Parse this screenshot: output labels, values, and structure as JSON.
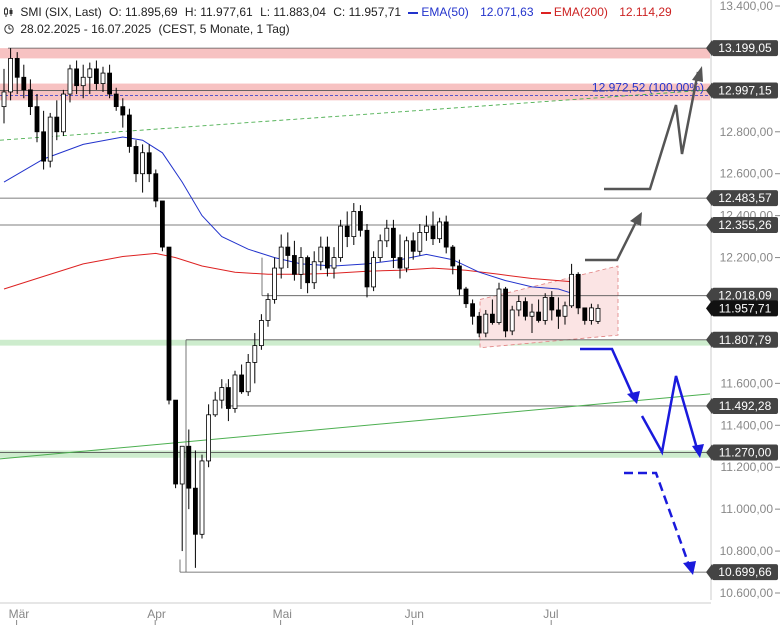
{
  "header": {
    "symbol": "SMI (SIX, Last)",
    "open": "O: 11.895,69",
    "high": "H: 11.977,61",
    "low": "L: 11.883,04",
    "close": "C: 11.957,71",
    "ema50_label": "EMA(50)",
    "ema50_value": "12.071,63",
    "ema200_label": "EMA(200)",
    "ema200_value": "12.114,29",
    "range": "28.02.2025 - 16.07.2025",
    "settings": "(CEST, 5 Monate, 1 Tag)"
  },
  "colors": {
    "up": "#ffffff",
    "down": "#000000",
    "ema50": "#2233cc",
    "ema200": "#dd2222",
    "resistance_zone": "#f7c2c2",
    "support_zone": "#cdeccd",
    "arrow_up": "#555555",
    "arrow_down": "#1a1adc"
  },
  "chart_data": {
    "type": "candlestick",
    "ylim": [
      10600,
      13400
    ],
    "y_ticks": [
      {
        "v": 13400,
        "label": "13.400,00"
      },
      {
        "v": 12800,
        "label": "12.800,00"
      },
      {
        "v": 12600,
        "label": "12.600,00"
      },
      {
        "v": 12400,
        "label": "12.400,00"
      },
      {
        "v": 12200,
        "label": "12.200,00"
      },
      {
        "v": 11600,
        "label": "11.600,00"
      },
      {
        "v": 11400,
        "label": "11.400,00"
      },
      {
        "v": 11200,
        "label": "11.200,00"
      },
      {
        "v": 11000,
        "label": "11.000,00"
      },
      {
        "v": 10800,
        "label": "10.800,00"
      },
      {
        "v": 10600,
        "label": "10.600,00"
      }
    ],
    "x_labels": [
      {
        "label": "Mär",
        "bar": 1
      },
      {
        "label": "Apr",
        "bar": 22
      },
      {
        "label": "Mai",
        "bar": 41
      },
      {
        "label": "Jun",
        "bar": 61
      },
      {
        "label": "Jul",
        "bar": 82
      }
    ],
    "levels": [
      {
        "v": 13199.05,
        "label": "13.199,05",
        "badge": "dark"
      },
      {
        "v": 12997.15,
        "label": "12.997,15",
        "badge": "dark"
      },
      {
        "v": 12483.57,
        "label": "12.483,57",
        "badge": "dark"
      },
      {
        "v": 12355.26,
        "label": "12.355,26",
        "badge": "dark"
      },
      {
        "v": 12018.09,
        "label": "12.018,09",
        "badge": "dark"
      },
      {
        "v": 11957.71,
        "label": "11.957,71",
        "badge": "last"
      },
      {
        "v": 11807.79,
        "label": "11.807,79",
        "badge": "dark"
      },
      {
        "v": 11492.28,
        "label": "11.492,28",
        "badge": "dark"
      },
      {
        "v": 11270.0,
        "label": "11.270,00",
        "badge": "dark"
      },
      {
        "v": 10699.66,
        "label": "10.699,66",
        "badge": "dark"
      }
    ],
    "fib_label": "12.972,52 (100,00%)",
    "fib_value": 12972.52,
    "candles": [
      [
        12920,
        13100,
        12840,
        12990
      ],
      [
        12990,
        13199,
        12950,
        13150
      ],
      [
        13150,
        13180,
        12980,
        13060
      ],
      [
        13060,
        13120,
        12960,
        13000
      ],
      [
        13000,
        13050,
        12880,
        12920
      ],
      [
        12920,
        12980,
        12750,
        12800
      ],
      [
        12800,
        12900,
        12620,
        12660
      ],
      [
        12660,
        12890,
        12630,
        12870
      ],
      [
        12870,
        12950,
        12760,
        12800
      ],
      [
        12800,
        13000,
        12780,
        12980
      ],
      [
        12980,
        13120,
        12940,
        13100
      ],
      [
        13100,
        13140,
        12980,
        13020
      ],
      [
        13020,
        13120,
        12960,
        13060
      ],
      [
        13060,
        13130,
        12980,
        13100
      ],
      [
        13100,
        13140,
        13000,
        13030
      ],
      [
        13030,
        13110,
        12990,
        13080
      ],
      [
        13080,
        13120,
        12960,
        12980
      ],
      [
        12980,
        13010,
        12900,
        12920
      ],
      [
        12920,
        12960,
        12820,
        12880
      ],
      [
        12880,
        12910,
        12700,
        12730
      ],
      [
        12730,
        12760,
        12560,
        12600
      ],
      [
        12600,
        12740,
        12510,
        12700
      ],
      [
        12700,
        12740,
        12560,
        12600
      ],
      [
        12600,
        12620,
        12440,
        12470
      ],
      [
        12470,
        12460,
        12230,
        12250
      ],
      [
        12250,
        12250,
        11500,
        11520
      ],
      [
        11520,
        11520,
        11100,
        11120
      ],
      [
        11120,
        11300,
        10800,
        11300
      ],
      [
        11300,
        11380,
        11000,
        11100
      ],
      [
        11100,
        11280,
        10720,
        10880
      ],
      [
        10880,
        11260,
        10860,
        11230
      ],
      [
        11230,
        11500,
        11200,
        11450
      ],
      [
        11450,
        11560,
        11440,
        11520
      ],
      [
        11520,
        11620,
        11480,
        11580
      ],
      [
        11580,
        11620,
        11420,
        11480
      ],
      [
        11480,
        11660,
        11460,
        11640
      ],
      [
        11640,
        11690,
        11550,
        11560
      ],
      [
        11560,
        11740,
        11540,
        11700
      ],
      [
        11700,
        11840,
        11600,
        11780
      ],
      [
        11780,
        11930,
        11760,
        11900
      ],
      [
        11900,
        12030,
        11870,
        12000
      ],
      [
        12000,
        12200,
        11980,
        12150
      ],
      [
        12150,
        12310,
        12100,
        12250
      ],
      [
        12250,
        12320,
        12150,
        12210
      ],
      [
        12210,
        12280,
        12090,
        12120
      ],
      [
        12120,
        12250,
        12050,
        12200
      ],
      [
        12200,
        12210,
        12030,
        12080
      ],
      [
        12080,
        12230,
        12050,
        12180
      ],
      [
        12180,
        12300,
        12140,
        12250
      ],
      [
        12250,
        12300,
        12110,
        12150
      ],
      [
        12150,
        12250,
        12100,
        12200
      ],
      [
        12200,
        12380,
        12180,
        12350
      ],
      [
        12350,
        12420,
        12250,
        12300
      ],
      [
        12300,
        12460,
        12260,
        12420
      ],
      [
        12420,
        12450,
        12300,
        12330
      ],
      [
        12330,
        12360,
        12010,
        12060
      ],
      [
        12060,
        12230,
        12040,
        12200
      ],
      [
        12200,
        12310,
        12180,
        12280
      ],
      [
        12280,
        12380,
        12250,
        12340
      ],
      [
        12340,
        12380,
        12150,
        12200
      ],
      [
        12200,
        12310,
        12100,
        12150
      ],
      [
        12150,
        12300,
        12130,
        12280
      ],
      [
        12280,
        12320,
        12190,
        12230
      ],
      [
        12230,
        12360,
        12210,
        12320
      ],
      [
        12320,
        12400,
        12280,
        12350
      ],
      [
        12350,
        12420,
        12260,
        12290
      ],
      [
        12290,
        12390,
        12270,
        12370
      ],
      [
        12370,
        12400,
        12220,
        12250
      ],
      [
        12250,
        12260,
        12120,
        12160
      ],
      [
        12160,
        12190,
        12020,
        12050
      ],
      [
        12050,
        12060,
        11960,
        11980
      ],
      [
        11980,
        12000,
        11880,
        11920
      ],
      [
        11920,
        11940,
        11820,
        11840
      ],
      [
        11840,
        11950,
        11820,
        11930
      ],
      [
        11930,
        12000,
        11880,
        11890
      ],
      [
        11890,
        12080,
        11880,
        12050
      ],
      [
        12050,
        12060,
        11820,
        11850
      ],
      [
        11850,
        11970,
        11830,
        11950
      ],
      [
        11950,
        12020,
        11920,
        11990
      ],
      [
        11990,
        12010,
        11900,
        11920
      ],
      [
        11920,
        11980,
        11840,
        11940
      ],
      [
        11940,
        12000,
        11890,
        11900
      ],
      [
        11900,
        12030,
        11880,
        12010
      ],
      [
        12010,
        12040,
        11900,
        11950
      ],
      [
        11950,
        12010,
        11860,
        11920
      ],
      [
        11920,
        11990,
        11880,
        11970
      ],
      [
        11970,
        12170,
        11960,
        12120
      ],
      [
        12120,
        12130,
        11930,
        11960
      ],
      [
        11960,
        11960,
        11880,
        11900
      ],
      [
        11900,
        11980,
        11880,
        11960
      ],
      [
        11895.69,
        11977.61,
        11883.04,
        11957.71
      ]
    ],
    "ema50": [
      [
        0,
        12560
      ],
      [
        6,
        12670
      ],
      [
        12,
        12740
      ],
      [
        18,
        12775
      ],
      [
        21,
        12760
      ],
      [
        24,
        12700
      ],
      [
        27,
        12560
      ],
      [
        30,
        12400
      ],
      [
        33,
        12300
      ],
      [
        37,
        12240
      ],
      [
        41,
        12200
      ],
      [
        45,
        12170
      ],
      [
        50,
        12160
      ],
      [
        55,
        12170
      ],
      [
        60,
        12190
      ],
      [
        64,
        12215
      ],
      [
        68,
        12190
      ],
      [
        72,
        12130
      ],
      [
        76,
        12090
      ],
      [
        80,
        12060
      ],
      [
        84,
        12050
      ],
      [
        86,
        12030
      ]
    ],
    "ema200": [
      [
        0,
        12050
      ],
      [
        6,
        12110
      ],
      [
        12,
        12170
      ],
      [
        18,
        12205
      ],
      [
        23,
        12220
      ],
      [
        26,
        12200
      ],
      [
        30,
        12160
      ],
      [
        35,
        12130
      ],
      [
        40,
        12120
      ],
      [
        45,
        12120
      ],
      [
        50,
        12125
      ],
      [
        55,
        12135
      ],
      [
        60,
        12140
      ],
      [
        65,
        12150
      ],
      [
        70,
        12140
      ],
      [
        75,
        12120
      ],
      [
        80,
        12100
      ],
      [
        84,
        12090
      ],
      [
        86,
        12085
      ]
    ]
  }
}
